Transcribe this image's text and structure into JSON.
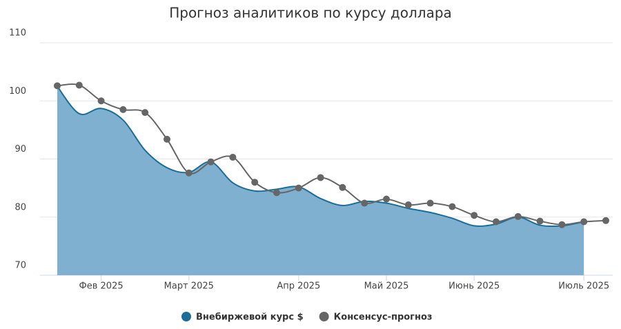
{
  "chart_data": {
    "type": "area-line",
    "title": "Прогноз аналитиков по курсу доллара",
    "categories": [
      null,
      null,
      "Фев 2025",
      null,
      null,
      null,
      "Март 2025",
      null,
      null,
      null,
      null,
      "Апр 2025",
      null,
      null,
      null,
      "Май 2025",
      null,
      null,
      null,
      "Июнь 2025",
      null,
      null,
      null,
      null,
      "Июль 2025",
      null
    ],
    "series": [
      {
        "name": "Внебиржевой курс $",
        "kind": "area",
        "color": "#1a6d99",
        "fill": "#7fb0cf",
        "values": [
          102.5,
          97.8,
          98.7,
          96.7,
          91.5,
          88.5,
          87.7,
          89.5,
          85.9,
          84.5,
          84.8,
          85.2,
          83.2,
          82,
          82.7,
          82.4,
          81.5,
          80.8,
          79.8,
          78.5,
          78.8,
          80,
          78.6,
          78.5,
          79.2,
          null
        ]
      },
      {
        "name": "Консенсус-прогноз",
        "kind": "line",
        "color": "#666666",
        "values": [
          102.6,
          102.7,
          100,
          98.5,
          98,
          93.4,
          87.6,
          89.5,
          90.3,
          86,
          84.2,
          85,
          86.8,
          85.1,
          82.4,
          83.1,
          82.1,
          82.4,
          81.8,
          80.3,
          79.2,
          80.1,
          79.3,
          78.7,
          79.2,
          79.4
        ]
      }
    ],
    "ylim": [
      70,
      110
    ],
    "yticks": [
      70,
      80,
      90,
      100,
      110
    ],
    "grid": true
  }
}
